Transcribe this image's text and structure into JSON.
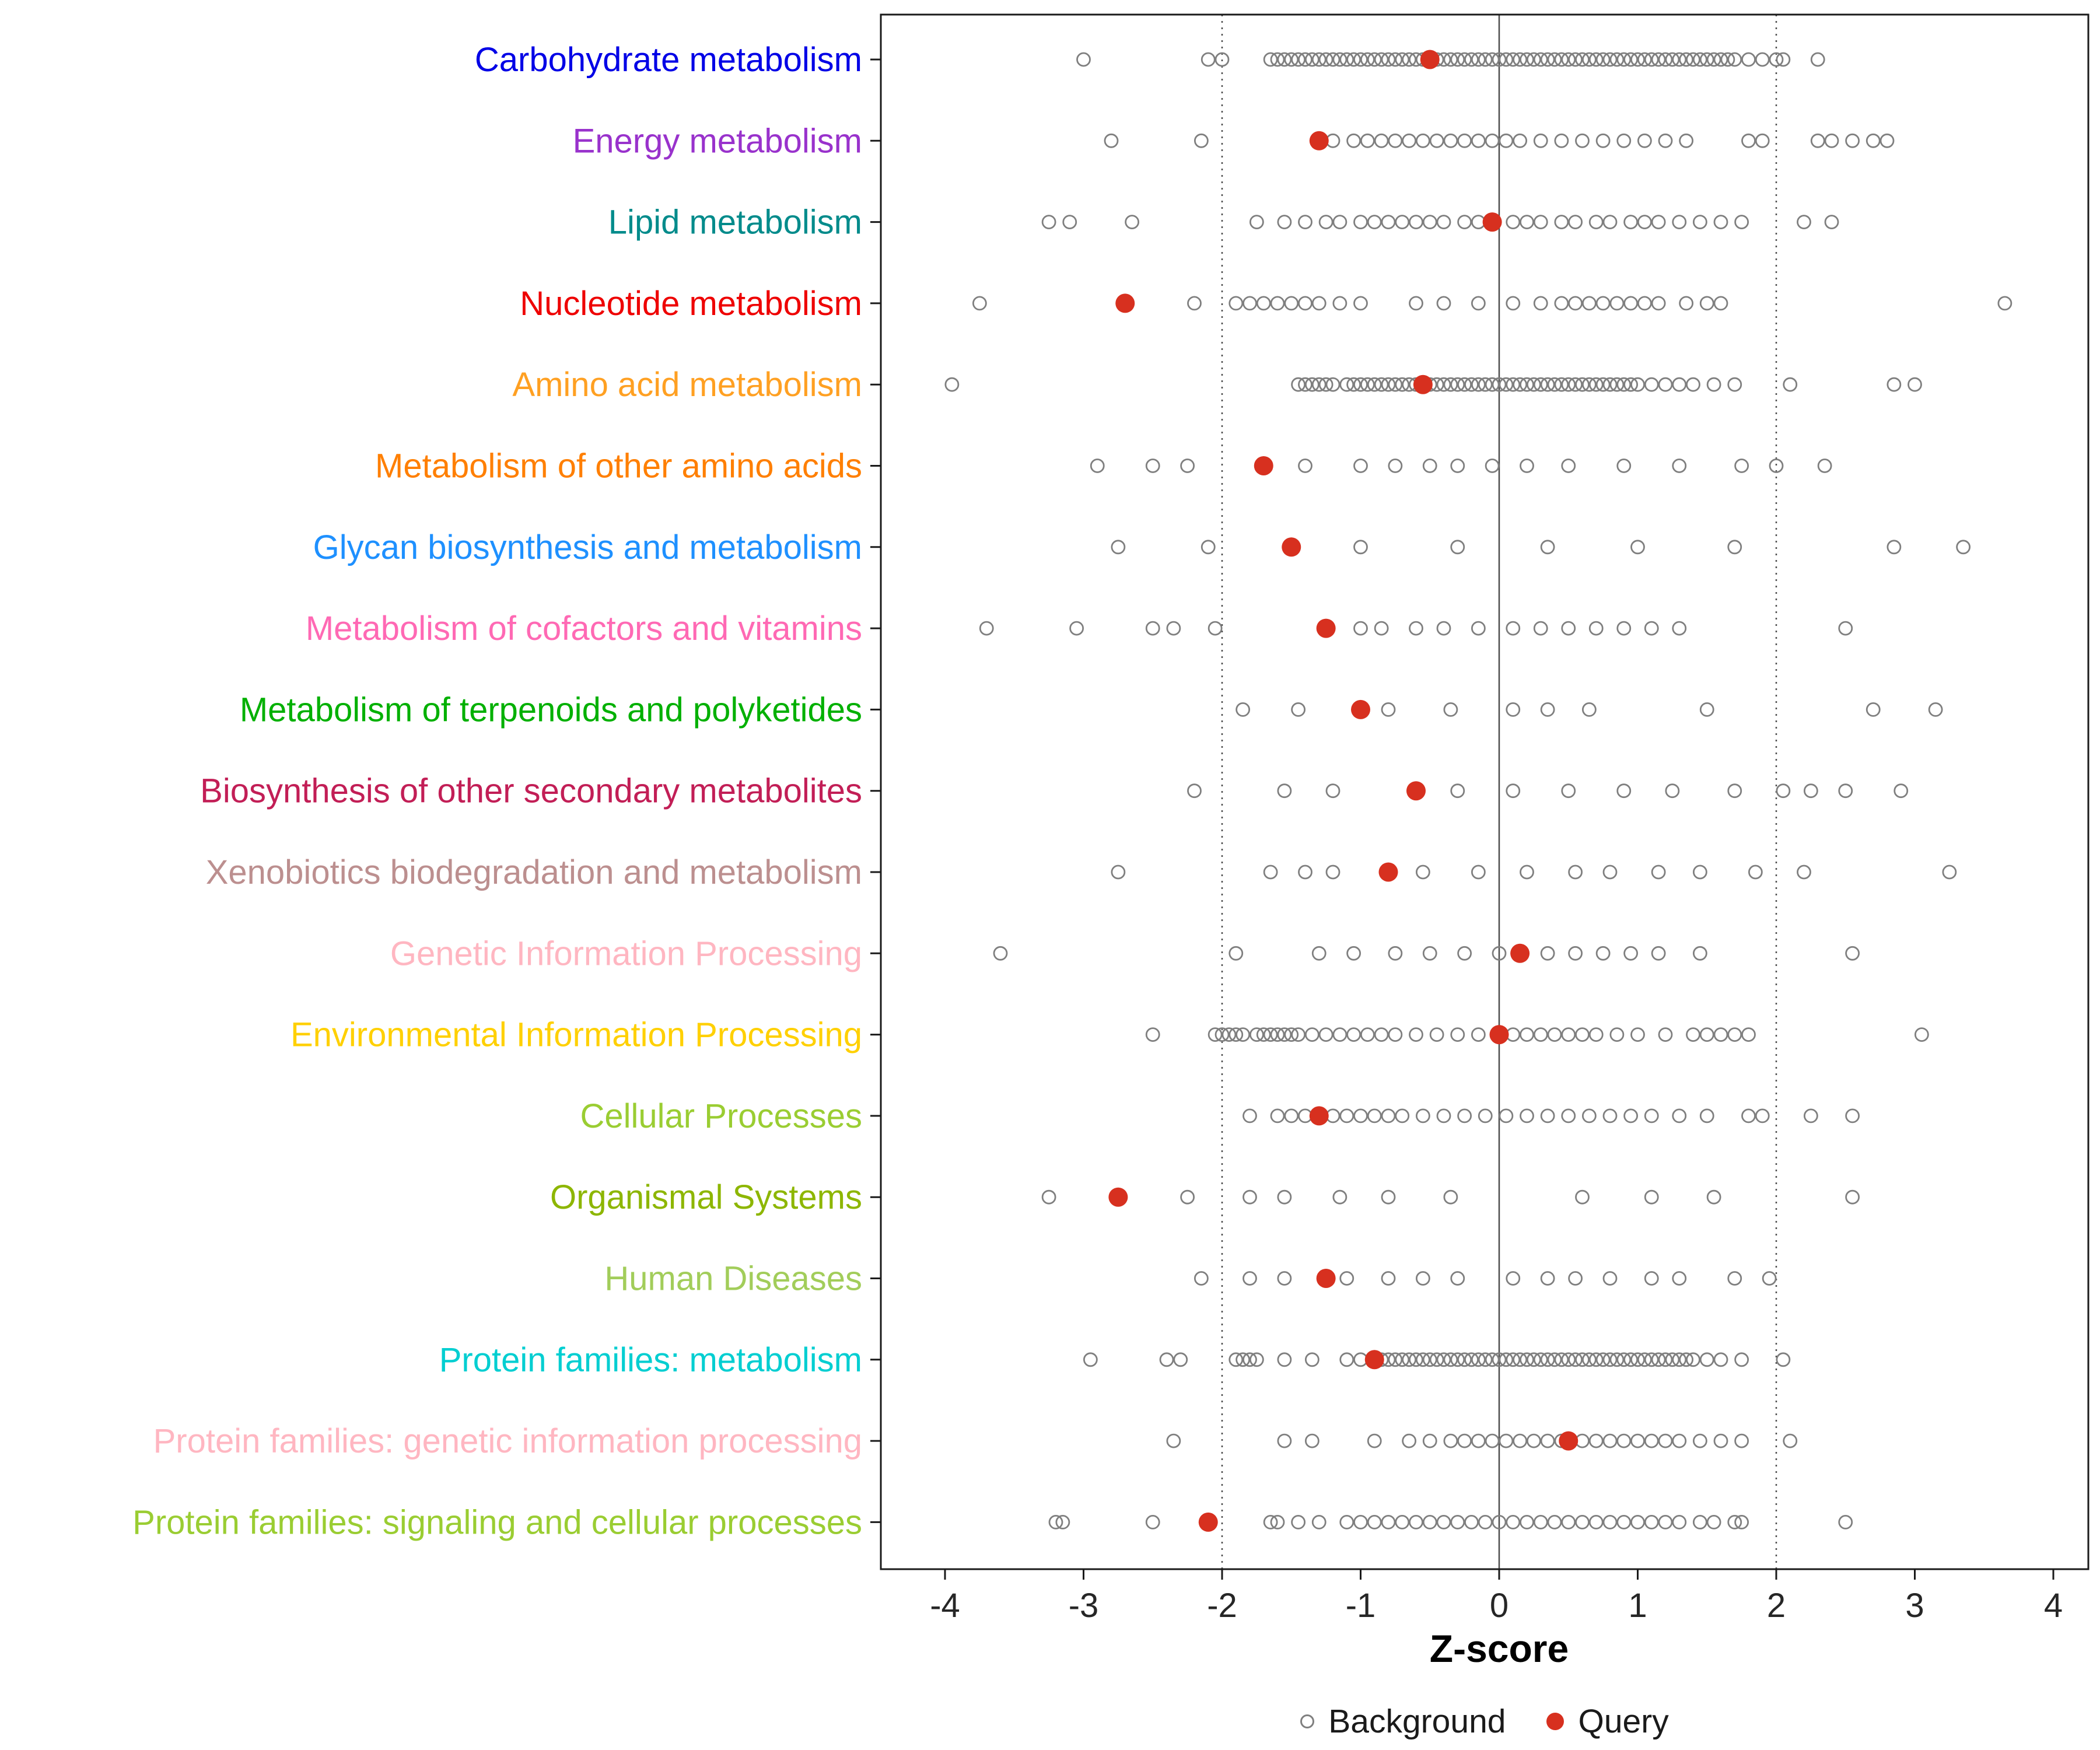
{
  "chart_data": {
    "type": "scatter",
    "title": "",
    "xlabel": "Z-score",
    "xlim": [
      -4.35,
      4.35
    ],
    "x_ticks": [
      -4,
      -3,
      -2,
      -1,
      0,
      1,
      2,
      3,
      4
    ],
    "grid": false,
    "legend_position": "bottom",
    "reference_lines": {
      "solid": [
        0
      ],
      "dotted": [
        -2,
        2
      ]
    },
    "marker": {
      "background_color": "#7F7F7F",
      "query_color": "#D7301F"
    },
    "legend": [
      {
        "label": "Background",
        "type": "open",
        "color": "#7F7F7F"
      },
      {
        "label": "Query",
        "type": "filled",
        "color": "#D7301F"
      }
    ],
    "categories": [
      {
        "label": "Carbohydrate metabolism",
        "color": "#0000E6",
        "query": -0.5,
        "background": [
          -3.0,
          -2.1,
          -2.0,
          -1.65,
          -1.6,
          -1.55,
          -1.5,
          -1.45,
          -1.4,
          -1.35,
          -1.3,
          -1.25,
          -1.2,
          -1.15,
          -1.1,
          -1.05,
          -1.0,
          -0.95,
          -0.9,
          -0.85,
          -0.8,
          -0.75,
          -0.7,
          -0.65,
          -0.6,
          -0.55,
          -0.45,
          -0.4,
          -0.35,
          -0.3,
          -0.25,
          -0.2,
          -0.15,
          -0.1,
          -0.05,
          0.0,
          0.05,
          0.1,
          0.15,
          0.2,
          0.25,
          0.3,
          0.35,
          0.4,
          0.45,
          0.5,
          0.55,
          0.6,
          0.65,
          0.7,
          0.75,
          0.8,
          0.85,
          0.9,
          0.95,
          1.0,
          1.05,
          1.1,
          1.15,
          1.2,
          1.25,
          1.3,
          1.35,
          1.4,
          1.45,
          1.5,
          1.55,
          1.6,
          1.65,
          1.7,
          1.8,
          1.9,
          2.0,
          2.05,
          2.3
        ]
      },
      {
        "label": "Energy metabolism",
        "color": "#9932CC",
        "query": -1.3,
        "background": [
          -2.8,
          -2.15,
          -1.2,
          -1.05,
          -0.95,
          -0.85,
          -0.75,
          -0.65,
          -0.55,
          -0.45,
          -0.35,
          -0.25,
          -0.15,
          -0.05,
          0.05,
          0.15,
          0.3,
          0.45,
          0.6,
          0.75,
          0.9,
          1.05,
          1.2,
          1.35,
          1.8,
          1.9,
          2.3,
          2.4,
          2.55,
          2.7,
          2.8
        ]
      },
      {
        "label": "Lipid metabolism",
        "color": "#008B8B",
        "query": -0.05,
        "background": [
          -3.25,
          -3.1,
          -2.65,
          -1.75,
          -1.55,
          -1.4,
          -1.25,
          -1.15,
          -1.0,
          -0.9,
          -0.8,
          -0.7,
          -0.6,
          -0.5,
          -0.4,
          -0.25,
          -0.15,
          0.1,
          0.2,
          0.3,
          0.45,
          0.55,
          0.7,
          0.8,
          0.95,
          1.05,
          1.15,
          1.3,
          1.45,
          1.6,
          1.75,
          2.2,
          2.4
        ]
      },
      {
        "label": "Nucleotide metabolism",
        "color": "#EE0000",
        "query": -2.7,
        "background": [
          -3.75,
          -2.2,
          -1.9,
          -1.8,
          -1.7,
          -1.6,
          -1.5,
          -1.4,
          -1.3,
          -1.15,
          -1.0,
          -0.6,
          -0.4,
          -0.15,
          0.1,
          0.3,
          0.45,
          0.55,
          0.65,
          0.75,
          0.85,
          0.95,
          1.05,
          1.15,
          1.35,
          1.5,
          1.6,
          3.65
        ]
      },
      {
        "label": "Amino acid metabolism",
        "color": "#FFA022",
        "query": -0.55,
        "background": [
          -3.95,
          -1.45,
          -1.4,
          -1.35,
          -1.3,
          -1.25,
          -1.2,
          -1.1,
          -1.05,
          -1.0,
          -0.95,
          -0.9,
          -0.85,
          -0.8,
          -0.75,
          -0.7,
          -0.65,
          -0.6,
          -0.5,
          -0.45,
          -0.4,
          -0.35,
          -0.3,
          -0.25,
          -0.2,
          -0.15,
          -0.1,
          -0.05,
          0.0,
          0.05,
          0.1,
          0.15,
          0.2,
          0.25,
          0.3,
          0.35,
          0.4,
          0.45,
          0.5,
          0.55,
          0.6,
          0.65,
          0.7,
          0.75,
          0.8,
          0.85,
          0.9,
          0.95,
          1.0,
          1.1,
          1.2,
          1.3,
          1.4,
          1.55,
          1.7,
          2.1,
          2.85,
          3.0
        ]
      },
      {
        "label": "Metabolism of other amino acids",
        "color": "#FF7F00",
        "query": -1.7,
        "background": [
          -2.9,
          -2.5,
          -2.25,
          -1.4,
          -1.0,
          -0.75,
          -0.5,
          -0.3,
          -0.05,
          0.2,
          0.5,
          0.9,
          1.3,
          1.75,
          2.0,
          2.35
        ]
      },
      {
        "label": "Glycan biosynthesis and metabolism",
        "color": "#1E90FF",
        "query": -1.5,
        "background": [
          -2.75,
          -2.1,
          -1.0,
          -0.3,
          0.35,
          1.0,
          1.7,
          2.85,
          3.35
        ]
      },
      {
        "label": "Metabolism of cofactors and vitamins",
        "color": "#FF69B4",
        "query": -1.25,
        "background": [
          -3.7,
          -3.05,
          -2.5,
          -2.35,
          -2.05,
          -1.0,
          -0.85,
          -0.6,
          -0.4,
          -0.15,
          0.1,
          0.3,
          0.5,
          0.7,
          0.9,
          1.1,
          1.3,
          2.5
        ]
      },
      {
        "label": "Metabolism of terpenoids and polyketides",
        "color": "#00B000",
        "query": -1.0,
        "background": [
          -1.85,
          -1.45,
          -0.8,
          -0.35,
          0.1,
          0.35,
          0.65,
          1.5,
          2.7,
          3.15
        ]
      },
      {
        "label": "Biosynthesis of other secondary metabolites",
        "color": "#C21E56",
        "query": -0.6,
        "background": [
          -2.2,
          -1.55,
          -1.2,
          -0.3,
          0.1,
          0.5,
          0.9,
          1.25,
          1.7,
          2.05,
          2.25,
          2.5,
          2.9
        ]
      },
      {
        "label": "Xenobiotics biodegradation and metabolism",
        "color": "#BC8F8F",
        "query": -0.8,
        "background": [
          -2.75,
          -1.65,
          -1.4,
          -1.2,
          -0.55,
          -0.15,
          0.2,
          0.55,
          0.8,
          1.15,
          1.45,
          1.85,
          2.2,
          3.25
        ]
      },
      {
        "label": "Genetic Information Processing",
        "color": "#FFB6C1",
        "query": 0.15,
        "background": [
          -3.6,
          -1.9,
          -1.3,
          -1.05,
          -0.75,
          -0.5,
          -0.25,
          0.0,
          0.35,
          0.55,
          0.75,
          0.95,
          1.15,
          1.45,
          2.55
        ]
      },
      {
        "label": "Environmental Information Processing",
        "color": "#FFD000",
        "query": 0.0,
        "background": [
          -2.5,
          -2.05,
          -2.0,
          -1.95,
          -1.9,
          -1.85,
          -1.75,
          -1.7,
          -1.65,
          -1.6,
          -1.55,
          -1.5,
          -1.45,
          -1.35,
          -1.25,
          -1.15,
          -1.05,
          -0.95,
          -0.85,
          -0.75,
          -0.6,
          -0.45,
          -0.3,
          -0.15,
          0.1,
          0.2,
          0.3,
          0.4,
          0.5,
          0.6,
          0.7,
          0.85,
          1.0,
          1.2,
          1.4,
          1.5,
          1.6,
          1.7,
          1.8,
          3.05
        ]
      },
      {
        "label": "Cellular Processes",
        "color": "#9ACD32",
        "query": -1.3,
        "background": [
          -1.8,
          -1.6,
          -1.5,
          -1.4,
          -1.2,
          -1.1,
          -1.0,
          -0.9,
          -0.8,
          -0.7,
          -0.55,
          -0.4,
          -0.25,
          -0.1,
          0.05,
          0.2,
          0.35,
          0.5,
          0.65,
          0.8,
          0.95,
          1.1,
          1.3,
          1.5,
          1.8,
          1.9,
          2.25,
          2.55
        ]
      },
      {
        "label": "Organismal Systems",
        "color": "#8DB600",
        "query": -2.75,
        "background": [
          -3.25,
          -2.25,
          -1.8,
          -1.55,
          -1.15,
          -0.8,
          -0.35,
          0.6,
          1.1,
          1.55,
          2.55
        ]
      },
      {
        "label": "Human Diseases",
        "color": "#A2CD5A",
        "query": -1.25,
        "background": [
          -2.15,
          -1.8,
          -1.55,
          -1.1,
          -0.8,
          -0.55,
          -0.3,
          0.1,
          0.35,
          0.55,
          0.8,
          1.1,
          1.3,
          1.7,
          1.95
        ]
      },
      {
        "label": "Protein families: metabolism",
        "color": "#00CED1",
        "query": -0.9,
        "background": [
          -2.95,
          -2.4,
          -2.3,
          -1.9,
          -1.85,
          -1.8,
          -1.75,
          -1.55,
          -1.35,
          -1.1,
          -1.0,
          -0.85,
          -0.8,
          -0.75,
          -0.7,
          -0.65,
          -0.6,
          -0.55,
          -0.5,
          -0.45,
          -0.4,
          -0.35,
          -0.3,
          -0.25,
          -0.2,
          -0.15,
          -0.1,
          -0.05,
          0.0,
          0.05,
          0.1,
          0.15,
          0.2,
          0.25,
          0.3,
          0.35,
          0.4,
          0.45,
          0.5,
          0.55,
          0.6,
          0.65,
          0.7,
          0.75,
          0.8,
          0.85,
          0.9,
          0.95,
          1.0,
          1.05,
          1.1,
          1.15,
          1.2,
          1.25,
          1.3,
          1.35,
          1.4,
          1.5,
          1.6,
          1.75,
          2.05
        ]
      },
      {
        "label": "Protein families: genetic information processing",
        "color": "#FFB6C1",
        "query": 0.5,
        "background": [
          -2.35,
          -1.55,
          -1.35,
          -0.9,
          -0.65,
          -0.5,
          -0.35,
          -0.25,
          -0.15,
          -0.05,
          0.05,
          0.15,
          0.25,
          0.35,
          0.45,
          0.6,
          0.7,
          0.8,
          0.9,
          1.0,
          1.1,
          1.2,
          1.3,
          1.45,
          1.6,
          1.75,
          2.1
        ]
      },
      {
        "label": "Protein families: signaling and cellular processes",
        "color": "#9ACD32",
        "query": -2.1,
        "background": [
          -3.2,
          -3.15,
          -2.5,
          -1.65,
          -1.6,
          -1.45,
          -1.3,
          -1.1,
          -1.0,
          -0.9,
          -0.8,
          -0.7,
          -0.6,
          -0.5,
          -0.4,
          -0.3,
          -0.2,
          -0.1,
          0.0,
          0.1,
          0.2,
          0.3,
          0.4,
          0.5,
          0.6,
          0.7,
          0.8,
          0.9,
          1.0,
          1.1,
          1.2,
          1.3,
          1.45,
          1.55,
          1.7,
          1.75,
          2.5
        ]
      }
    ]
  }
}
